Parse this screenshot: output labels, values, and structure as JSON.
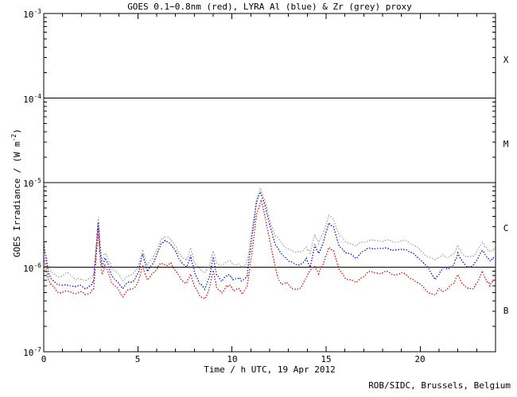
{
  "chart_data": {
    "type": "line",
    "title": "GOES 0.1−0.8nm (red), LYRA Al (blue) & Zr (grey) proxy",
    "xlabel": "Time / h UTC, 19 Apr 2012",
    "ylabel_prefix": "GOES Irradiance / (W m",
    "ylabel_exp": "-2",
    "ylabel_suffix": ")",
    "credit": "ROB/SIDC, Brussels, Belgium",
    "xlim": [
      0,
      24
    ],
    "ylog_top": -3,
    "ylog_bot": -7,
    "x_major_ticks": [
      0,
      5,
      10,
      15,
      20
    ],
    "x_minor_step": 1,
    "x_tick_labels": [
      "0",
      "5",
      "10",
      "15",
      "20"
    ],
    "y_tick_base": "10",
    "y_tick_exps": [
      "-3",
      "-4",
      "-5",
      "-6",
      "-7"
    ],
    "class_lines": [
      0.0001,
      1e-05,
      1e-06
    ],
    "flare_class_labels": [
      "X",
      "M",
      "C",
      "B"
    ],
    "grid": false,
    "legend_position": "colors named in title",
    "series": [
      {
        "name": "GOES 0.1-0.8nm",
        "color": "#dd2222",
        "points": [
          [
            0,
            1.3e-06
          ],
          [
            0.1,
            1e-06
          ],
          [
            0.25,
            7.2e-07
          ],
          [
            0.4,
            6.2e-07
          ],
          [
            0.7,
            5.2e-07
          ],
          [
            1.0,
            5e-07
          ],
          [
            1.3,
            5.2e-07
          ],
          [
            1.6,
            4.9e-07
          ],
          [
            1.9,
            5.1e-07
          ],
          [
            2.2,
            4.8e-07
          ],
          [
            2.5,
            5e-07
          ],
          [
            2.65,
            5.6e-07
          ],
          [
            2.8,
            1.5e-06
          ],
          [
            2.9,
            2.8e-06
          ],
          [
            3.0,
            1.2e-06
          ],
          [
            3.1,
            8.2e-07
          ],
          [
            3.25,
            1.05e-06
          ],
          [
            3.4,
            9e-07
          ],
          [
            3.6,
            6.6e-07
          ],
          [
            3.9,
            5.6e-07
          ],
          [
            4.2,
            4.6e-07
          ],
          [
            4.5,
            5.4e-07
          ],
          [
            4.8,
            5.6e-07
          ],
          [
            5.05,
            7e-07
          ],
          [
            5.25,
            1.05e-06
          ],
          [
            5.5,
            7e-07
          ],
          [
            5.75,
            8.2e-07
          ],
          [
            6.0,
            9.6e-07
          ],
          [
            6.25,
            1.12e-06
          ],
          [
            6.5,
            1.05e-06
          ],
          [
            6.75,
            1.1e-06
          ],
          [
            7.0,
            9.2e-07
          ],
          [
            7.3,
            7e-07
          ],
          [
            7.6,
            6.6e-07
          ],
          [
            7.8,
            8.2e-07
          ],
          [
            8.0,
            6e-07
          ],
          [
            8.3,
            4.5e-07
          ],
          [
            8.55,
            4.2e-07
          ],
          [
            8.8,
            5.6e-07
          ],
          [
            9.0,
            9.2e-07
          ],
          [
            9.2,
            5.6e-07
          ],
          [
            9.45,
            5e-07
          ],
          [
            9.7,
            5.8e-07
          ],
          [
            9.9,
            6.2e-07
          ],
          [
            10.1,
            5.2e-07
          ],
          [
            10.35,
            5.7e-07
          ],
          [
            10.55,
            4.8e-07
          ],
          [
            10.8,
            6e-07
          ],
          [
            11.05,
            1.4e-06
          ],
          [
            11.3,
            4.2e-06
          ],
          [
            11.55,
            6.2e-06
          ],
          [
            11.8,
            3.6e-06
          ],
          [
            12.1,
            1.6e-06
          ],
          [
            12.4,
            8e-07
          ],
          [
            12.65,
            6.2e-07
          ],
          [
            12.9,
            6.6e-07
          ],
          [
            13.15,
            5.8e-07
          ],
          [
            13.45,
            5.3e-07
          ],
          [
            13.7,
            6e-07
          ],
          [
            13.95,
            7.5e-07
          ],
          [
            14.2,
            9.6e-07
          ],
          [
            14.4,
            1.02e-06
          ],
          [
            14.6,
            8.4e-07
          ],
          [
            14.85,
            1.1e-06
          ],
          [
            15.15,
            1.72e-06
          ],
          [
            15.4,
            1.55e-06
          ],
          [
            15.7,
            9.2e-07
          ],
          [
            16.0,
            7.6e-07
          ],
          [
            16.3,
            7e-07
          ],
          [
            16.6,
            6.6e-07
          ],
          [
            16.9,
            7.6e-07
          ],
          [
            17.2,
            8.6e-07
          ],
          [
            17.5,
            8.8e-07
          ],
          [
            17.8,
            8.4e-07
          ],
          [
            18.1,
            8.8e-07
          ],
          [
            18.4,
            8.6e-07
          ],
          [
            18.7,
            8e-07
          ],
          [
            19.0,
            8.6e-07
          ],
          [
            19.3,
            8e-07
          ],
          [
            19.6,
            7.2e-07
          ],
          [
            20.0,
            6.3e-07
          ],
          [
            20.4,
            5.2e-07
          ],
          [
            20.8,
            4.7e-07
          ],
          [
            21.0,
            5.6e-07
          ],
          [
            21.2,
            5.2e-07
          ],
          [
            21.5,
            5.6e-07
          ],
          [
            21.8,
            6.6e-07
          ],
          [
            22.0,
            8.2e-07
          ],
          [
            22.2,
            6.6e-07
          ],
          [
            22.5,
            5.5e-07
          ],
          [
            22.8,
            5.7e-07
          ],
          [
            23.05,
            6.6e-07
          ],
          [
            23.3,
            9e-07
          ],
          [
            23.5,
            7e-07
          ],
          [
            23.7,
            6.2e-07
          ],
          [
            23.85,
            6.8e-07
          ],
          [
            24,
            7e-07
          ]
        ]
      },
      {
        "name": "LYRA Al proxy",
        "color": "#2222cc",
        "points": [
          [
            0,
            1.85e-06
          ],
          [
            0.1,
            1.3e-06
          ],
          [
            0.25,
            8.6e-07
          ],
          [
            0.4,
            7.4e-07
          ],
          [
            0.7,
            6.3e-07
          ],
          [
            1.0,
            6e-07
          ],
          [
            1.3,
            6.3e-07
          ],
          [
            1.6,
            5.8e-07
          ],
          [
            1.9,
            6.1e-07
          ],
          [
            2.2,
            5.7e-07
          ],
          [
            2.5,
            6e-07
          ],
          [
            2.65,
            6.8e-07
          ],
          [
            2.8,
            1.8e-06
          ],
          [
            2.9,
            3.4e-06
          ],
          [
            3.0,
            1.5e-06
          ],
          [
            3.1,
            1e-06
          ],
          [
            3.25,
            1.3e-06
          ],
          [
            3.4,
            1.1e-06
          ],
          [
            3.6,
            8e-07
          ],
          [
            3.9,
            6.8e-07
          ],
          [
            4.2,
            5.6e-07
          ],
          [
            4.5,
            6.6e-07
          ],
          [
            4.8,
            7e-07
          ],
          [
            5.05,
            9e-07
          ],
          [
            5.25,
            1.45e-06
          ],
          [
            5.5,
            9e-07
          ],
          [
            5.75,
            1.05e-06
          ],
          [
            6.0,
            1.4e-06
          ],
          [
            6.25,
            1.9e-06
          ],
          [
            6.45,
            2.05e-06
          ],
          [
            6.7,
            1.9e-06
          ],
          [
            6.9,
            1.7e-06
          ],
          [
            7.1,
            1.4e-06
          ],
          [
            7.35,
            1.1e-06
          ],
          [
            7.6,
            1e-06
          ],
          [
            7.8,
            1.35e-06
          ],
          [
            8.0,
            9e-07
          ],
          [
            8.3,
            6.2e-07
          ],
          [
            8.55,
            5.6e-07
          ],
          [
            8.8,
            7.6e-07
          ],
          [
            9.0,
            1.3e-06
          ],
          [
            9.2,
            7.8e-07
          ],
          [
            9.45,
            7e-07
          ],
          [
            9.7,
            7.8e-07
          ],
          [
            9.9,
            8e-07
          ],
          [
            10.1,
            7e-07
          ],
          [
            10.35,
            7.6e-07
          ],
          [
            10.55,
            6.8e-07
          ],
          [
            10.8,
            8e-07
          ],
          [
            11.05,
            2.2e-06
          ],
          [
            11.3,
            5.8e-06
          ],
          [
            11.5,
            7.8e-06
          ],
          [
            11.75,
            5.5e-06
          ],
          [
            12.0,
            3.1e-06
          ],
          [
            12.3,
            1.9e-06
          ],
          [
            12.6,
            1.45e-06
          ],
          [
            12.9,
            1.25e-06
          ],
          [
            13.15,
            1.15e-06
          ],
          [
            13.45,
            1.05e-06
          ],
          [
            13.7,
            1.1e-06
          ],
          [
            13.95,
            1.25e-06
          ],
          [
            14.15,
            1e-06
          ],
          [
            14.4,
            1.8e-06
          ],
          [
            14.6,
            1.45e-06
          ],
          [
            14.85,
            1.9e-06
          ],
          [
            15.15,
            3.4e-06
          ],
          [
            15.4,
            2.9e-06
          ],
          [
            15.7,
            1.8e-06
          ],
          [
            16.0,
            1.5e-06
          ],
          [
            16.3,
            1.4e-06
          ],
          [
            16.6,
            1.3e-06
          ],
          [
            16.9,
            1.5e-06
          ],
          [
            17.2,
            1.65e-06
          ],
          [
            17.5,
            1.7e-06
          ],
          [
            17.8,
            1.62e-06
          ],
          [
            18.1,
            1.7e-06
          ],
          [
            18.4,
            1.65e-06
          ],
          [
            18.7,
            1.55e-06
          ],
          [
            19.0,
            1.65e-06
          ],
          [
            19.3,
            1.6e-06
          ],
          [
            19.6,
            1.45e-06
          ],
          [
            20.0,
            1.25e-06
          ],
          [
            20.4,
            1e-06
          ],
          [
            20.8,
            7.3e-07
          ],
          [
            21.0,
            8.2e-07
          ],
          [
            21.2,
            1e-06
          ],
          [
            21.5,
            9.4e-07
          ],
          [
            21.8,
            1.1e-06
          ],
          [
            22.0,
            1.45e-06
          ],
          [
            22.2,
            1.2e-06
          ],
          [
            22.5,
            1e-06
          ],
          [
            22.8,
            1.05e-06
          ],
          [
            23.05,
            1.25e-06
          ],
          [
            23.3,
            1.6e-06
          ],
          [
            23.5,
            1.35e-06
          ],
          [
            23.7,
            1.2e-06
          ],
          [
            23.85,
            1.25e-06
          ],
          [
            24,
            1.3e-06
          ]
        ]
      },
      {
        "name": "LYRA Zr proxy",
        "color": "#a8a8a8",
        "points": [
          [
            0,
            2e-06
          ],
          [
            0.1,
            1.45e-06
          ],
          [
            0.25,
            1e-06
          ],
          [
            0.4,
            8.8e-07
          ],
          [
            0.7,
            7.6e-07
          ],
          [
            1.0,
            7.9e-07
          ],
          [
            1.2,
            8.6e-07
          ],
          [
            1.45,
            8e-07
          ],
          [
            1.7,
            7.1e-07
          ],
          [
            1.9,
            7.3e-07
          ],
          [
            2.2,
            6.9e-07
          ],
          [
            2.5,
            7.3e-07
          ],
          [
            2.65,
            8.2e-07
          ],
          [
            2.8,
            2e-06
          ],
          [
            2.9,
            3.9e-06
          ],
          [
            3.0,
            1.8e-06
          ],
          [
            3.1,
            1.2e-06
          ],
          [
            3.25,
            1.5e-06
          ],
          [
            3.4,
            1.3e-06
          ],
          [
            3.6,
            1e-06
          ],
          [
            3.9,
            8.5e-07
          ],
          [
            4.2,
            7e-07
          ],
          [
            4.5,
            8e-07
          ],
          [
            4.8,
            8.5e-07
          ],
          [
            5.05,
            1.1e-06
          ],
          [
            5.25,
            1.6e-06
          ],
          [
            5.5,
            1.05e-06
          ],
          [
            5.75,
            1.25e-06
          ],
          [
            6.0,
            1.6e-06
          ],
          [
            6.25,
            2.1e-06
          ],
          [
            6.45,
            2.3e-06
          ],
          [
            6.7,
            2.15e-06
          ],
          [
            6.9,
            1.95e-06
          ],
          [
            7.1,
            1.6e-06
          ],
          [
            7.35,
            1.3e-06
          ],
          [
            7.6,
            1.2e-06
          ],
          [
            7.8,
            1.7e-06
          ],
          [
            8.0,
            1.15e-06
          ],
          [
            8.3,
            9.2e-07
          ],
          [
            8.55,
            8.6e-07
          ],
          [
            8.8,
            1.05e-06
          ],
          [
            9.0,
            1.55e-06
          ],
          [
            9.2,
            1.1e-06
          ],
          [
            9.45,
            1.05e-06
          ],
          [
            9.7,
            1.15e-06
          ],
          [
            9.9,
            1.2e-06
          ],
          [
            10.1,
            1.05e-06
          ],
          [
            10.35,
            1.1e-06
          ],
          [
            10.55,
            1e-06
          ],
          [
            10.8,
            1.15e-06
          ],
          [
            11.05,
            2.6e-06
          ],
          [
            11.3,
            6.2e-06
          ],
          [
            11.5,
            8.6e-06
          ],
          [
            11.75,
            6.2e-06
          ],
          [
            12.0,
            3.6e-06
          ],
          [
            12.3,
            2.4e-06
          ],
          [
            12.6,
            1.95e-06
          ],
          [
            12.9,
            1.7e-06
          ],
          [
            13.15,
            1.6e-06
          ],
          [
            13.45,
            1.5e-06
          ],
          [
            13.7,
            1.55e-06
          ],
          [
            13.95,
            1.7e-06
          ],
          [
            14.15,
            1.5e-06
          ],
          [
            14.4,
            2.4e-06
          ],
          [
            14.6,
            1.95e-06
          ],
          [
            14.85,
            2.5e-06
          ],
          [
            15.15,
            4.2e-06
          ],
          [
            15.4,
            3.6e-06
          ],
          [
            15.7,
            2.4e-06
          ],
          [
            16.0,
            2e-06
          ],
          [
            16.3,
            1.9e-06
          ],
          [
            16.6,
            1.8e-06
          ],
          [
            16.9,
            1.95e-06
          ],
          [
            17.2,
            2.05e-06
          ],
          [
            17.5,
            2.1e-06
          ],
          [
            17.8,
            2e-06
          ],
          [
            18.1,
            2.1e-06
          ],
          [
            18.4,
            2.05e-06
          ],
          [
            18.7,
            1.95e-06
          ],
          [
            19.0,
            2.1e-06
          ],
          [
            19.3,
            2e-06
          ],
          [
            19.6,
            1.85e-06
          ],
          [
            20.0,
            1.6e-06
          ],
          [
            20.4,
            1.35e-06
          ],
          [
            20.8,
            1.22e-06
          ],
          [
            21.0,
            1.3e-06
          ],
          [
            21.2,
            1.4e-06
          ],
          [
            21.5,
            1.3e-06
          ],
          [
            21.8,
            1.45e-06
          ],
          [
            22.0,
            1.8e-06
          ],
          [
            22.2,
            1.5e-06
          ],
          [
            22.5,
            1.3e-06
          ],
          [
            22.8,
            1.35e-06
          ],
          [
            23.05,
            1.55e-06
          ],
          [
            23.3,
            2e-06
          ],
          [
            23.5,
            1.7e-06
          ],
          [
            23.7,
            1.55e-06
          ],
          [
            23.85,
            1.6e-06
          ],
          [
            24,
            1.65e-06
          ]
        ]
      }
    ]
  }
}
